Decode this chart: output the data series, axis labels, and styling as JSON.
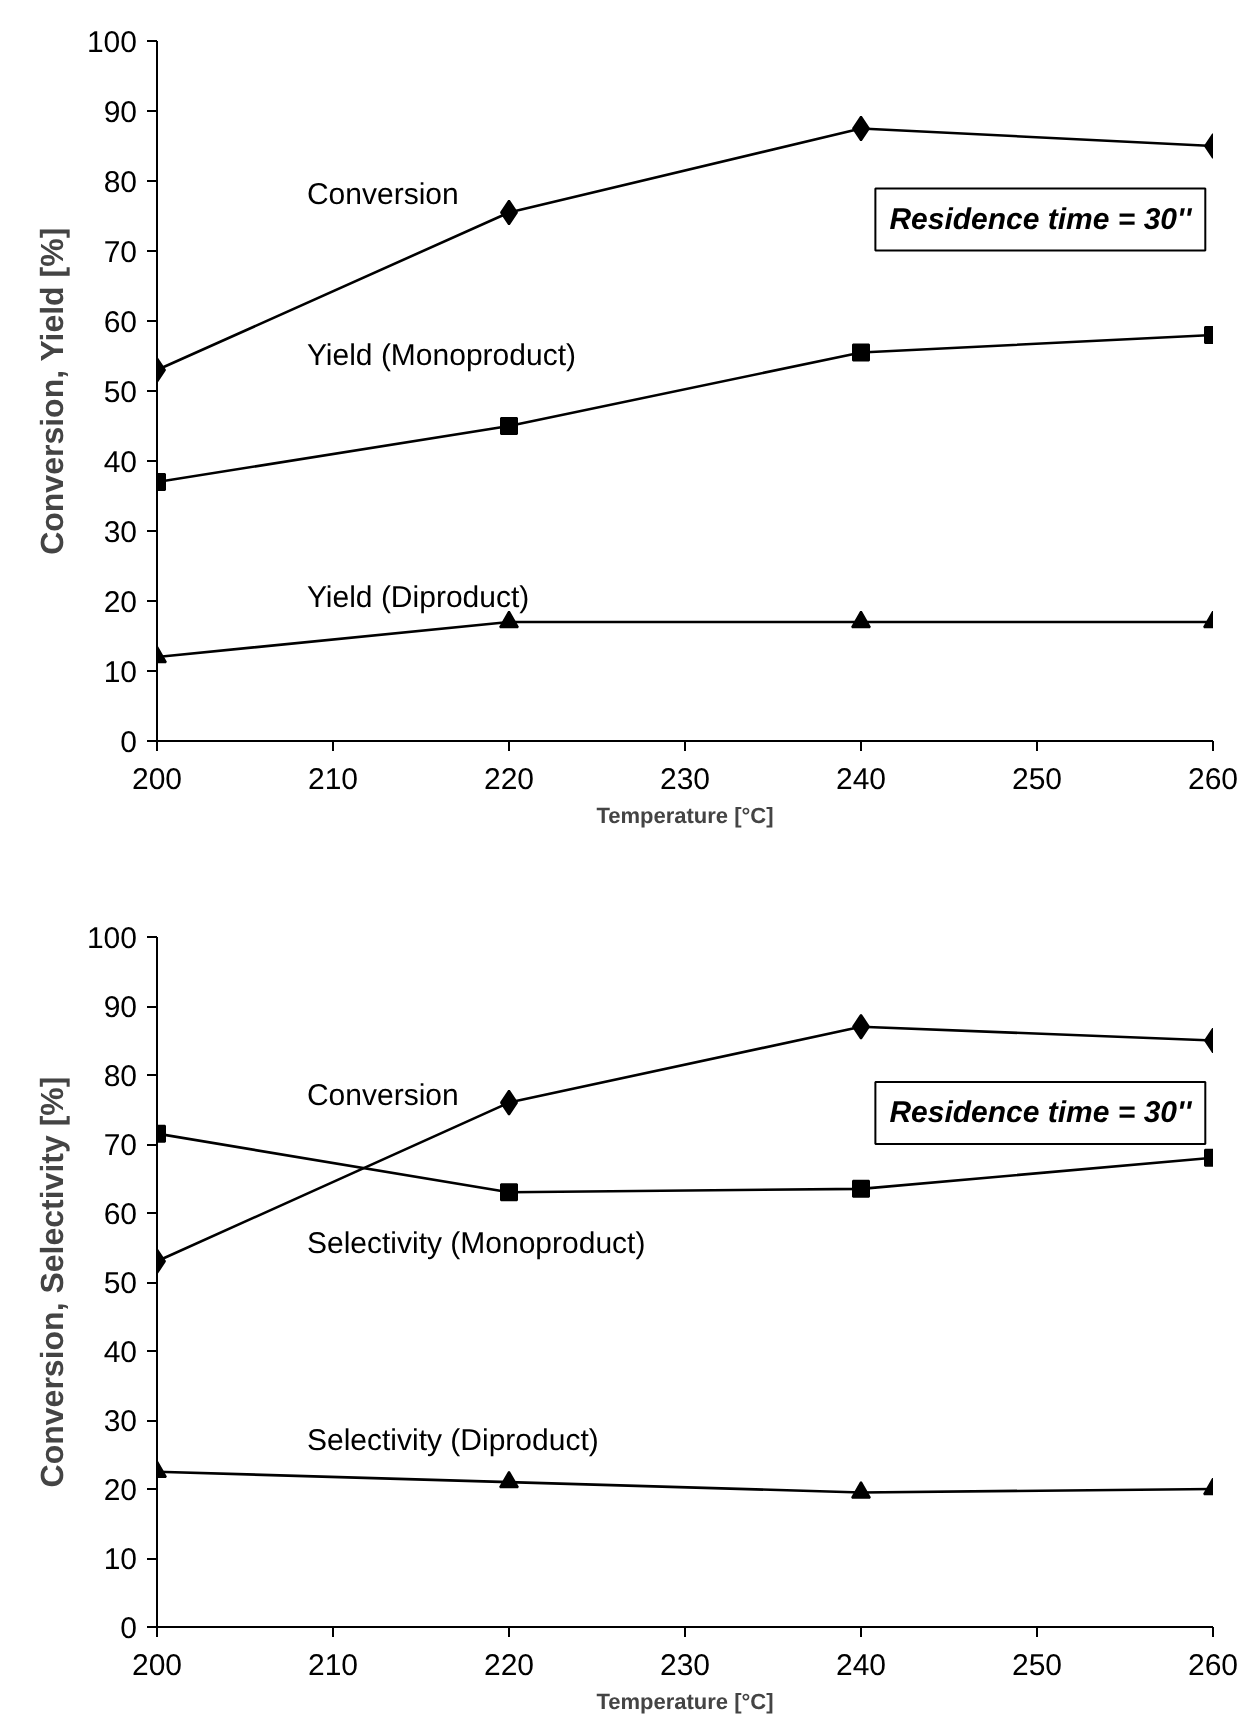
{
  "chart_data": [
    {
      "type": "line",
      "xlabel": "Temperature [°C]",
      "ylabel": "Conversion, Yield [%]",
      "x": [
        200,
        220,
        240,
        260
      ],
      "xlim": [
        200,
        260
      ],
      "xticks": [
        200,
        210,
        220,
        230,
        240,
        250,
        260
      ],
      "ylim": [
        0,
        100
      ],
      "yticks": [
        0,
        10,
        20,
        30,
        40,
        50,
        60,
        70,
        80,
        90,
        100
      ],
      "grid": false,
      "legend": false,
      "annotations": [
        "Residence time = 30''"
      ],
      "series": [
        {
          "name": "Conversion",
          "color": "#000000",
          "marker": "diamond",
          "values": [
            53,
            75.5,
            87.5,
            85
          ]
        },
        {
          "name": "Yield (Monoproduct)",
          "color": "#000000",
          "marker": "square",
          "values": [
            37,
            45,
            55.5,
            58
          ]
        },
        {
          "name": "Yield (Diproduct)",
          "color": "#000000",
          "marker": "triangle",
          "values": [
            12,
            17,
            17,
            17
          ]
        }
      ]
    },
    {
      "type": "line",
      "xlabel": "Temperature [°C]",
      "ylabel": "Conversion, Selectivity [%]",
      "x": [
        200,
        220,
        240,
        260
      ],
      "xlim": [
        200,
        260
      ],
      "xticks": [
        200,
        210,
        220,
        230,
        240,
        250,
        260
      ],
      "ylim": [
        0,
        100
      ],
      "yticks": [
        0,
        10,
        20,
        30,
        40,
        50,
        60,
        70,
        80,
        90,
        100
      ],
      "grid": false,
      "legend": false,
      "annotations": [
        "Residence time = 30''"
      ],
      "series": [
        {
          "name": "Conversion",
          "color": "#000000",
          "marker": "diamond",
          "values": [
            53,
            76,
            87,
            85
          ]
        },
        {
          "name": "Selectivity (Monoproduct)",
          "color": "#000000",
          "marker": "square",
          "values": [
            71.5,
            63,
            63.5,
            68
          ]
        },
        {
          "name": "Selectivity (Diproduct)",
          "color": "#000000",
          "marker": "triangle",
          "values": [
            22.5,
            21,
            19.5,
            20
          ]
        }
      ]
    }
  ]
}
